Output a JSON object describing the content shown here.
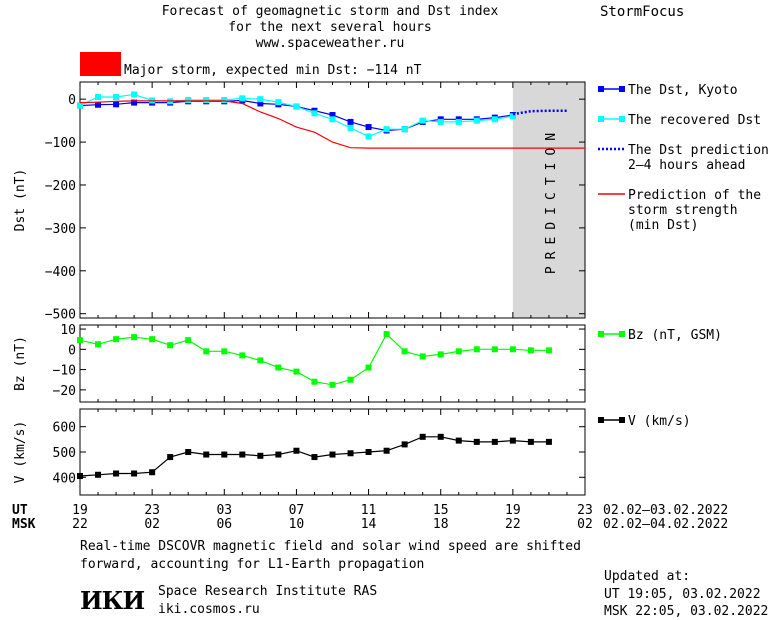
{
  "header": {
    "title_line1": "Forecast of geomagnetic storm and Dst index",
    "title_line2": "for the next several hours",
    "title_line3": "www.spaceweather.ru",
    "brand": "StormFocus"
  },
  "storm_alert": {
    "text": "Major storm, expected min Dst: −114 nT",
    "color": "#ff0000"
  },
  "footer": {
    "note_line1": "Real-time DSCOVR magnetic field and solar wind speed are shifted",
    "note_line2": "forward, accounting for L1-Earth propagation",
    "updated_label": "Updated at:",
    "updated_ut": "UT   19:05, 03.02.2022",
    "updated_msk": "MSK 22:05, 03.02.2022",
    "institute_logo": "ИКИ",
    "institute_name": "Space Research Institute RAS",
    "institute_url": "iki.cosmos.ru"
  },
  "time_axis": {
    "ut_label": "UT",
    "msk_label": "MSK",
    "ut_ticks": [
      "19",
      "23",
      "03",
      "07",
      "11",
      "15",
      "19",
      "23"
    ],
    "msk_ticks": [
      "22",
      "02",
      "06",
      "10",
      "14",
      "18",
      "22",
      "02"
    ],
    "ut_range": "02.02–03.02.2022",
    "msk_range": "02.02–04.02.2022"
  },
  "chart_data": [
    {
      "type": "line",
      "panel": "dst",
      "ylabel": "Dst (nT)",
      "ylim": [
        -510,
        40
      ],
      "yticks": [
        0,
        -100,
        -200,
        -300,
        -400,
        -500
      ],
      "xlim": [
        0,
        28
      ],
      "prediction_band": {
        "label": "PREDICTION",
        "x_start": 24,
        "x_end": 28,
        "color": "#d8d8d8"
      },
      "series": [
        {
          "name": "The Dst, Kyoto",
          "color": "#0000ff",
          "style": "line-square",
          "x": [
            0,
            1,
            2,
            3,
            4,
            5,
            6,
            7,
            8,
            9,
            10,
            11,
            12,
            13,
            14,
            15,
            16,
            17,
            18,
            19,
            20,
            21,
            22,
            23,
            24
          ],
          "y": [
            -15,
            -13,
            -12,
            -8,
            -8,
            -8,
            -5,
            -5,
            -5,
            -3,
            -10,
            -12,
            -17,
            -27,
            -37,
            -53,
            -65,
            -73,
            -70,
            -53,
            -47,
            -47,
            -47,
            -43,
            -37
          ]
        },
        {
          "name": "The recovered Dst",
          "color": "#00ffff",
          "style": "line-square",
          "x": [
            0,
            1,
            2,
            3,
            4,
            5,
            6,
            7,
            8,
            9,
            10,
            11,
            12,
            13,
            14,
            15,
            16,
            17,
            18,
            19,
            20,
            21,
            22,
            23,
            24
          ],
          "y": [
            -15,
            5,
            5,
            11,
            -3,
            -5,
            -2,
            -2,
            -2,
            2,
            0,
            -7,
            -17,
            -33,
            -47,
            -67,
            -87,
            -70,
            -70,
            -50,
            -53,
            -53,
            -50,
            -47,
            -40
          ]
        },
        {
          "name": "The Dst prediction\n2–4 hours ahead",
          "color": "#0000ff",
          "style": "dotted",
          "x": [
            24,
            25,
            26,
            27
          ],
          "y": [
            -35,
            -28,
            -27,
            -27
          ]
        },
        {
          "name": "Prediction of the\nstorm strength\n(min Dst)",
          "color": "#ff0000",
          "style": "line",
          "x": [
            0,
            1,
            2,
            3,
            4,
            5,
            6,
            7,
            8,
            9,
            10,
            11,
            12,
            13,
            14,
            15,
            16,
            17,
            18,
            19,
            20,
            21,
            22,
            23,
            24,
            25,
            26,
            27,
            28
          ],
          "y": [
            -8,
            -7,
            -5,
            -4,
            -4,
            -4,
            -4,
            -4,
            -4,
            -10,
            -30,
            -45,
            -65,
            -77,
            -100,
            -113,
            -114,
            -114,
            -114,
            -114,
            -114,
            -114,
            -114,
            -114,
            -114,
            -114,
            -114,
            -114,
            -114
          ]
        }
      ]
    },
    {
      "type": "line",
      "panel": "bz",
      "ylabel": "Bz (nT)",
      "ylim": [
        -26,
        12
      ],
      "yticks": [
        10,
        0,
        -10,
        -20
      ],
      "xlim": [
        0,
        28
      ],
      "series": [
        {
          "name": "Bz (nT, GSM)",
          "color": "#00ff00",
          "style": "line-square",
          "x": [
            0,
            1,
            2,
            3,
            4,
            5,
            6,
            7,
            8,
            9,
            10,
            11,
            12,
            13,
            14,
            15,
            16,
            17,
            18,
            19,
            20,
            21,
            22,
            23,
            24,
            25,
            26
          ],
          "y": [
            4.5,
            2.5,
            5,
            6,
            5,
            2,
            4.5,
            -1,
            -1,
            -3,
            -5.5,
            -9,
            -11,
            -16,
            -17.5,
            -15,
            -9,
            7.5,
            -1,
            -3.5,
            -2.5,
            -1,
            0,
            0,
            0,
            -0.5,
            -0.5
          ]
        }
      ]
    },
    {
      "type": "line",
      "panel": "v",
      "ylabel": "V (km/s)",
      "ylim": [
        330,
        670
      ],
      "yticks": [
        600,
        500,
        400
      ],
      "xlim": [
        0,
        28
      ],
      "series": [
        {
          "name": "V (km/s)",
          "color": "#000000",
          "style": "line-square",
          "x": [
            0,
            1,
            2,
            3,
            4,
            5,
            6,
            7,
            8,
            9,
            10,
            11,
            12,
            13,
            14,
            15,
            16,
            17,
            18,
            19,
            20,
            21,
            22,
            23,
            24,
            25,
            26
          ],
          "y": [
            405,
            410,
            415,
            415,
            420,
            480,
            500,
            490,
            490,
            490,
            485,
            490,
            505,
            480,
            490,
            495,
            500,
            505,
            530,
            560,
            560,
            545,
            540,
            540,
            545,
            540,
            540
          ]
        }
      ]
    }
  ]
}
